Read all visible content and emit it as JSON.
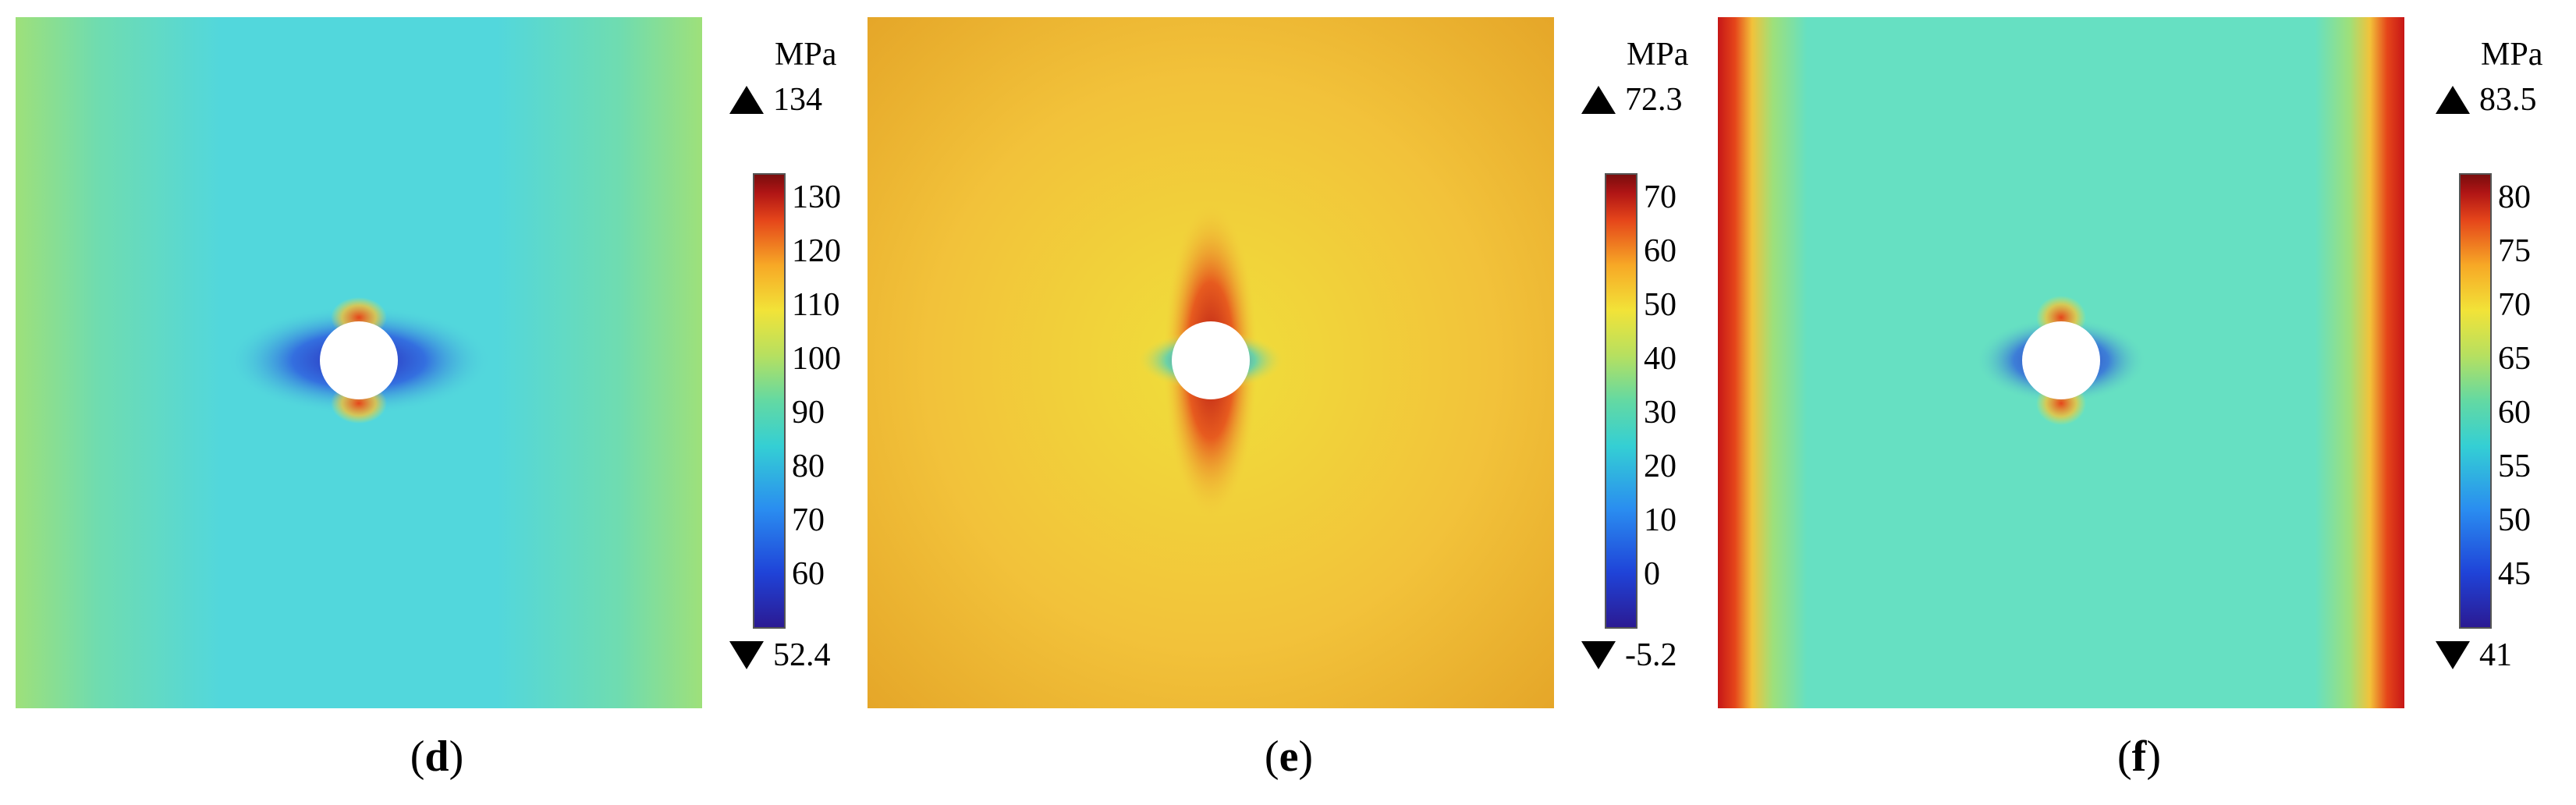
{
  "panels": [
    {
      "label_open": "(",
      "label_letter": "d",
      "label_close": ")",
      "unit": "MPa",
      "max": "134",
      "min": "52.4",
      "ticks": [
        "130",
        "120",
        "110",
        "100",
        "90",
        "80",
        "70",
        "60"
      ],
      "field_color": "#52d7dc",
      "edge_color": "#9ee07a"
    },
    {
      "label_open": "(",
      "label_letter": "e",
      "label_close": ")",
      "unit": "MPa",
      "max": "72.3",
      "min": "-5.2",
      "ticks": [
        "70",
        "60",
        "50",
        "40",
        "30",
        "20",
        "10",
        "0"
      ],
      "field_color": "#f2c23a",
      "edge_color": "#e3a226"
    },
    {
      "label_open": "(",
      "label_letter": "f",
      "label_close": ")",
      "unit": "MPa",
      "max": "83.5",
      "min": "41",
      "ticks": [
        "80",
        "75",
        "70",
        "65",
        "60",
        "55",
        "50",
        "45"
      ],
      "field_color": "#66e0c2",
      "edge_color": "#c61717"
    }
  ]
}
